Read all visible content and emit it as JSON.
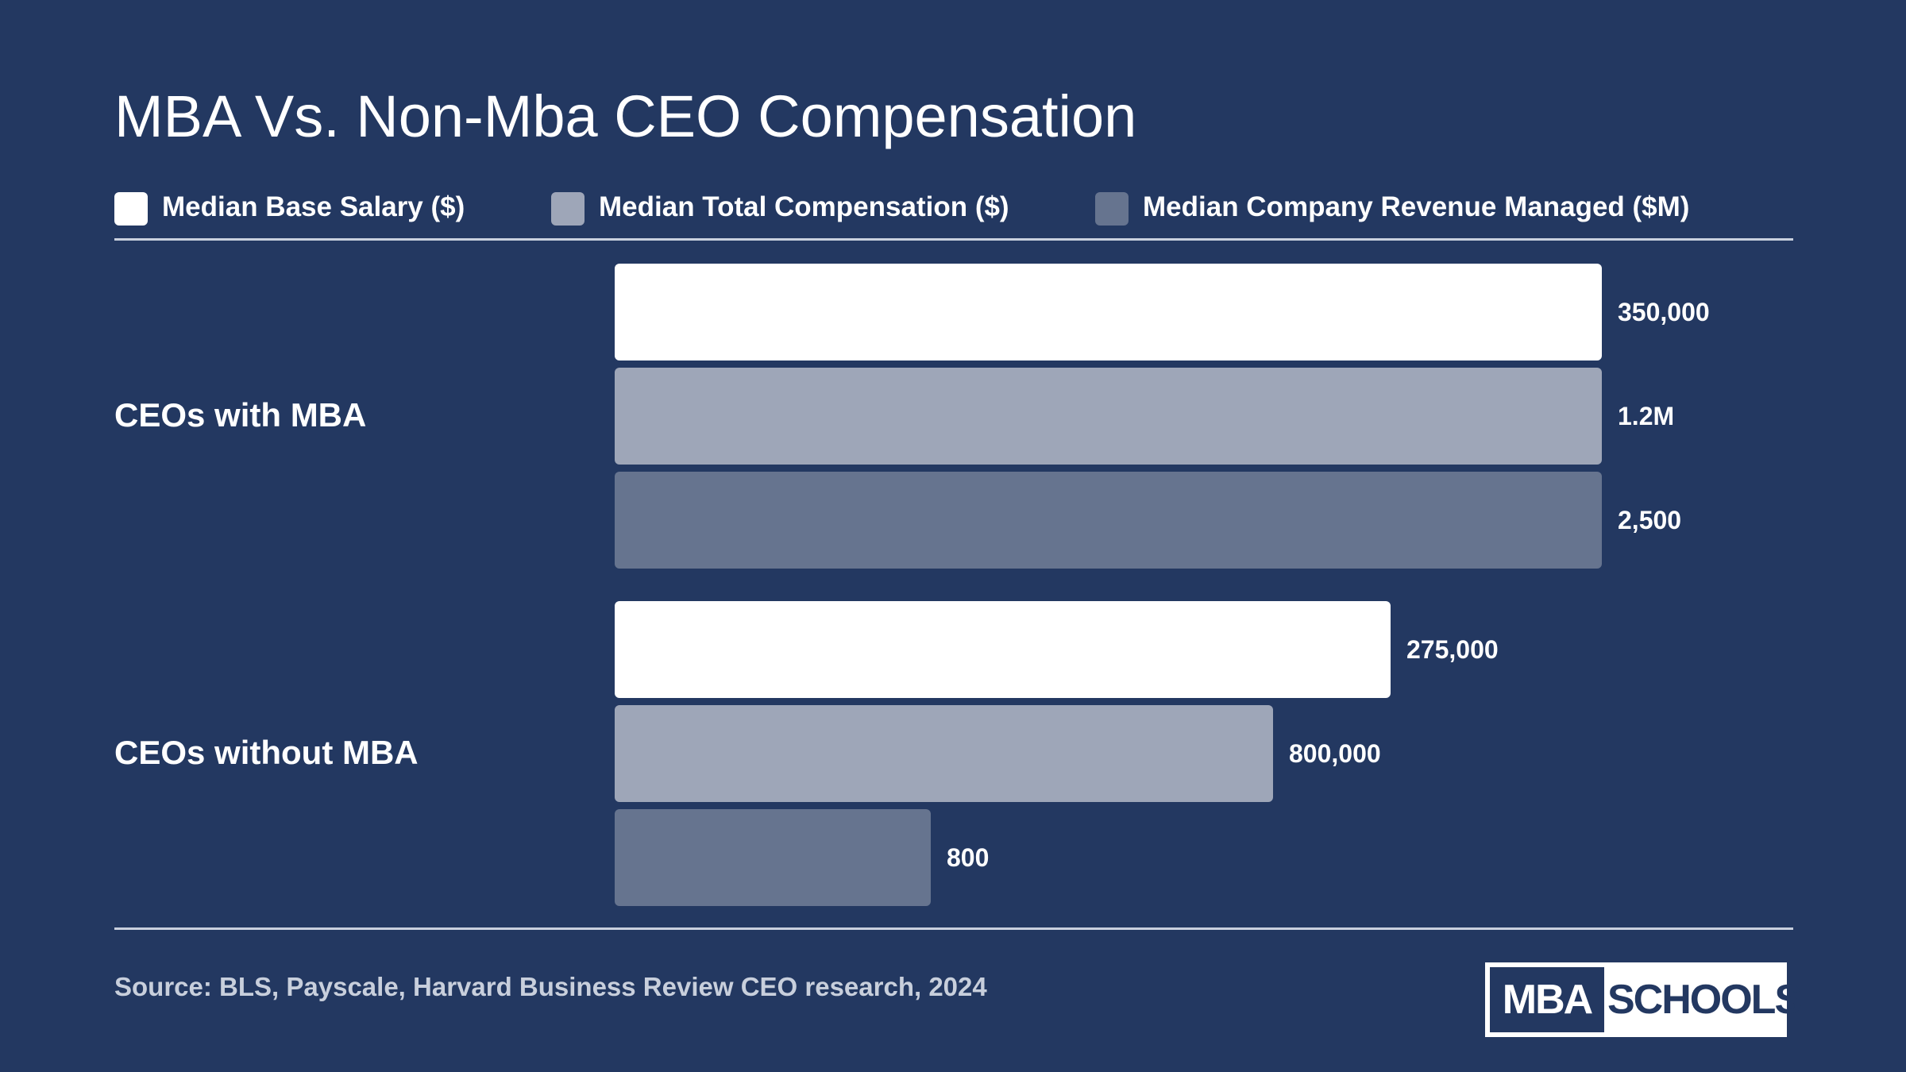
{
  "colors": {
    "background": "#233861",
    "base_salary": "#ffffff",
    "total_compensation": "#9ea6b8",
    "revenue_managed": "#66748f"
  },
  "chart_data": {
    "type": "bar",
    "orientation": "horizontal",
    "title": "MBA Vs. Non-Mba CEO Compensation",
    "categories": [
      "CEOs with MBA",
      "CEOs without MBA"
    ],
    "series": [
      {
        "name": "Median Base Salary ($)",
        "color": "#ffffff",
        "values": [
          350000,
          275000
        ],
        "labels": [
          "350,000",
          "275,000"
        ]
      },
      {
        "name": "Median Total Compensation ($)",
        "color": "#9ea6b8",
        "values": [
          1200000,
          800000
        ],
        "labels": [
          "1.2M",
          "800,000"
        ]
      },
      {
        "name": "Median Company Revenue Managed ($M)",
        "color": "#66748f",
        "values": [
          2500,
          800
        ],
        "labels": [
          "2,500",
          "800"
        ]
      }
    ],
    "scaling": "each series scaled to its own maximum",
    "legend_position": "top",
    "grid": false,
    "source": "Source: BLS, Payscale, Harvard Business Review CEO research, 2024"
  },
  "logo": {
    "left_text": "MBA",
    "right_text": "SCHOOLS"
  }
}
